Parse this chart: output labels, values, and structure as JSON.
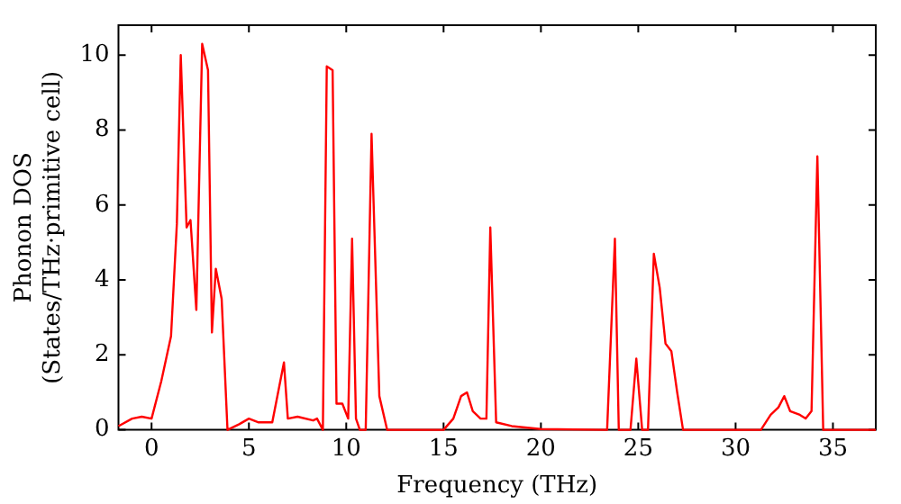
{
  "chart_data": {
    "type": "line",
    "xlabel": "Frequency (THz)",
    "ylabel": "Phonon DOS\n(States/THz·primitive cell)",
    "x": [
      -1.7,
      -1,
      -0.5,
      0,
      0.5,
      1,
      1.3,
      1.5,
      1.8,
      2.0,
      2.3,
      2.6,
      2.9,
      3.1,
      3.3,
      3.6,
      3.9,
      4.5,
      5,
      5.5,
      6.2,
      6.5,
      6.8,
      7.0,
      7.5,
      8.3,
      8.5,
      8.8,
      9.0,
      9.3,
      9.5,
      9.8,
      10.1,
      10.3,
      10.5,
      10.7,
      11.0,
      11.3,
      11.7,
      12.1,
      15.0,
      15.5,
      15.9,
      16.2,
      16.5,
      16.9,
      17.2,
      17.4,
      17.7,
      18.5,
      20,
      23.4,
      23.8,
      24.0,
      24.6,
      24.9,
      25.2,
      25.5,
      25.8,
      26.1,
      26.4,
      26.7,
      27.0,
      27.3,
      31.3,
      31.8,
      32.2,
      32.5,
      32.8,
      33.3,
      33.6,
      33.9,
      34.2,
      34.5,
      37.2
    ],
    "series": [
      {
        "color": "#ff0000",
        "values": [
          0.1,
          0.3,
          0.35,
          0.3,
          1.3,
          2.5,
          5.5,
          10.0,
          5.4,
          5.6,
          3.2,
          10.3,
          9.6,
          2.6,
          4.3,
          3.5,
          0,
          0.15,
          0.3,
          0.2,
          0.2,
          1.0,
          1.8,
          0.3,
          0.35,
          0.25,
          0.3,
          0,
          9.7,
          9.6,
          0.7,
          0.7,
          0.3,
          5.1,
          0.3,
          0,
          0,
          7.9,
          0.9,
          0,
          0,
          0.3,
          0.9,
          1.0,
          0.5,
          0.3,
          0.3,
          5.4,
          0.2,
          0.1,
          0.02,
          0,
          5.1,
          0,
          0,
          1.9,
          0,
          0,
          4.7,
          3.8,
          2.3,
          2.1,
          1.0,
          0,
          0,
          0.4,
          0.6,
          0.9,
          0.5,
          0.4,
          0.3,
          0.5,
          7.3,
          0,
          0
        ]
      }
    ],
    "xlim": [
      -1.7,
      37.2
    ],
    "ylim": [
      0,
      10.8
    ],
    "xticks": [
      0,
      5,
      10,
      15,
      20,
      25,
      30,
      35
    ],
    "yticks": [
      0,
      2,
      4,
      6,
      8,
      10
    ],
    "grid": false,
    "legend": false,
    "marker": "none",
    "line_style": "solid"
  }
}
